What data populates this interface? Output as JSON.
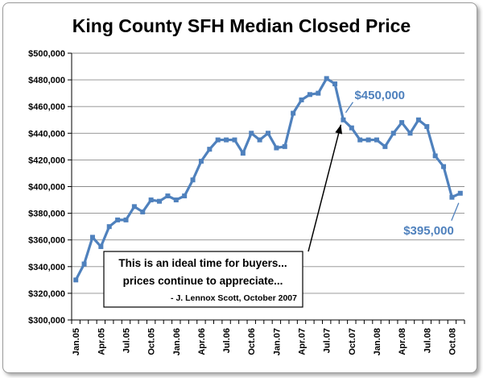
{
  "chart_data": {
    "type": "line",
    "title": "King County SFH Median Closed Price",
    "xlabel": "",
    "ylabel": "",
    "ylim": [
      300000,
      500000
    ],
    "yticks": [
      "$300,000",
      "$320,000",
      "$340,000",
      "$360,000",
      "$380,000",
      "$400,000",
      "$420,000",
      "$440,000",
      "$460,000",
      "$480,000",
      "$500,000"
    ],
    "xticks": [
      "Jan.05",
      "Apr.05",
      "Jul.05",
      "Oct.05",
      "Jan.06",
      "Apr.06",
      "Jul.06",
      "Oct.06",
      "Jan.07",
      "Apr.07",
      "Jul.07",
      "Oct.07",
      "Jan.08",
      "Apr.08",
      "Jul.08",
      "Oct.08"
    ],
    "grid": true,
    "legend": "none",
    "series_color": "#4f81bd",
    "series": [
      {
        "values": [
          330000,
          342000,
          362000,
          355000,
          370000,
          375000,
          375000,
          385000,
          381000,
          390000,
          389000,
          393000,
          390000,
          393000,
          405000,
          419000,
          428000,
          435000,
          435000,
          435000,
          425000,
          440000,
          435000,
          440000,
          429000,
          430000,
          455000,
          465000,
          469000,
          470000,
          481000,
          477000,
          450000,
          444000,
          435000,
          435000,
          435000,
          430000,
          440000,
          448000,
          440000,
          450000,
          445000,
          423000,
          415000,
          392000,
          395000
        ]
      }
    ],
    "annotations": [
      {
        "text": "$450,000",
        "point_index": 32
      },
      {
        "text": "$395,000",
        "point_index": 46
      }
    ],
    "quote": {
      "line1": "This is an ideal time for buyers...",
      "line2": "prices continue to appreciate...",
      "attribution": "- J. Lennox Scott, October 2007",
      "points_to_index": 32
    }
  }
}
